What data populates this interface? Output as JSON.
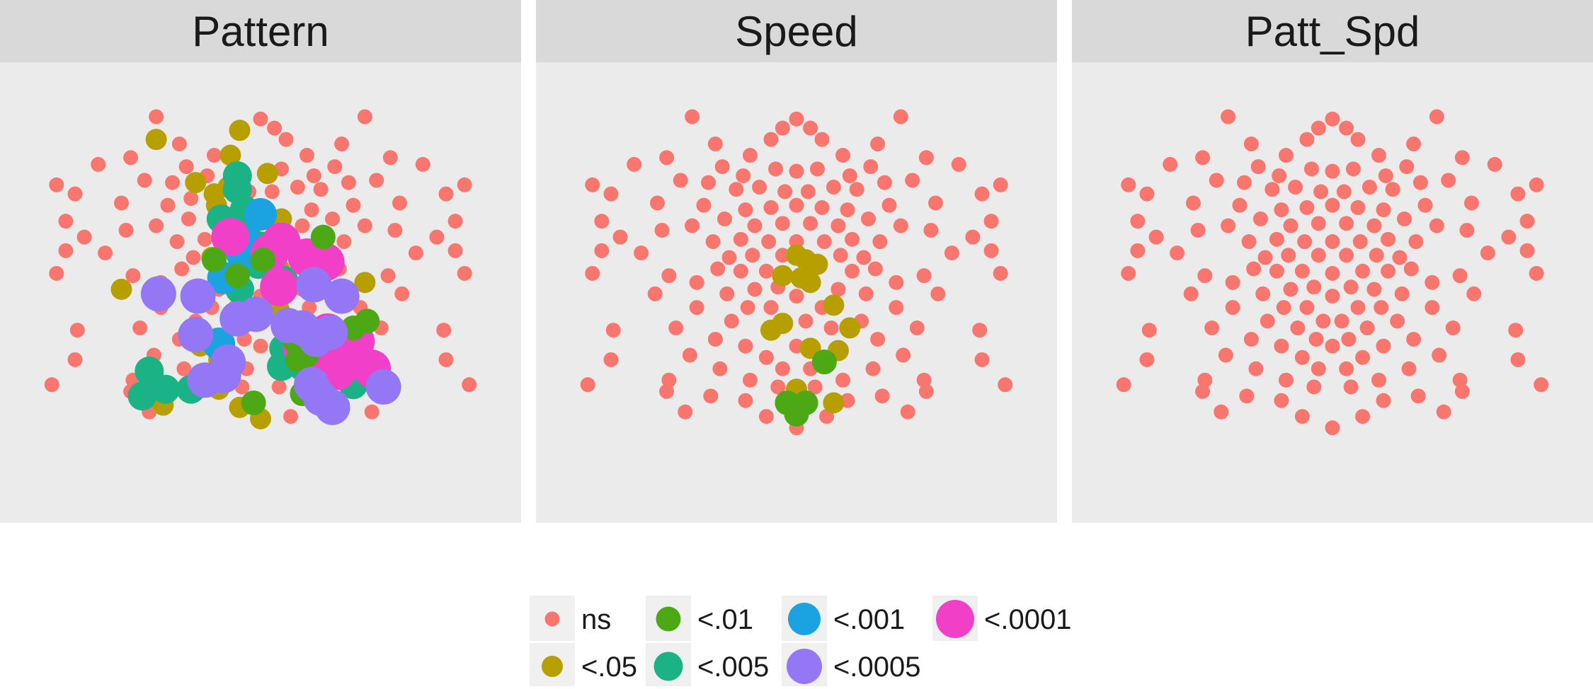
{
  "chart_data": {
    "type": "scatter",
    "facets": [
      {
        "title": "Pattern",
        "points": [
          [
            -0.45,
            0.71,
            "<.05"
          ],
          [
            -0.09,
            0.75,
            "<.05"
          ],
          [
            -0.13,
            0.64,
            "<.05"
          ],
          [
            0.03,
            0.56,
            "<.05"
          ],
          [
            -0.28,
            0.52,
            "<.05"
          ],
          [
            -0.1,
            0.48,
            "<.05"
          ],
          [
            -0.14,
            0.5,
            "<.05"
          ],
          [
            -0.19,
            0.42,
            "<.05"
          ],
          [
            -0.2,
            0.47,
            "<.05"
          ],
          [
            0.09,
            0.36,
            "<.05"
          ],
          [
            -0.21,
            0.19,
            "<.05"
          ],
          [
            0.08,
            0.14,
            "<.05"
          ],
          [
            0.45,
            0.08,
            "<.05"
          ],
          [
            -0.6,
            0.05,
            "<.05"
          ],
          [
            0.08,
            -0.04,
            "<.05"
          ],
          [
            -0.26,
            -0.2,
            "<.05"
          ],
          [
            -0.18,
            -0.26,
            "<.05"
          ],
          [
            -0.18,
            -0.39,
            "<.05"
          ],
          [
            -0.09,
            -0.47,
            "<.05"
          ],
          [
            -0.42,
            -0.46,
            "<.05"
          ],
          [
            0.0,
            -0.52,
            "<.05"
          ],
          [
            0.1,
            -0.19,
            "<.05"
          ],
          [
            -0.1,
            0.55,
            "<.005"
          ],
          [
            -0.1,
            0.49,
            "<.005"
          ],
          [
            -0.07,
            0.4,
            "<.005"
          ],
          [
            -0.17,
            0.36,
            "<.005"
          ],
          [
            -0.04,
            0.38,
            "<.005"
          ],
          [
            -0.15,
            0.33,
            "<.005"
          ],
          [
            -0.11,
            0.25,
            "<.005"
          ],
          [
            -0.03,
            0.25,
            "<.005"
          ],
          [
            -0.07,
            0.2,
            "<.005"
          ],
          [
            -0.01,
            0.16,
            "<.005"
          ],
          [
            0.01,
            0.24,
            "<.005"
          ],
          [
            -0.11,
            0.11,
            "<.005"
          ],
          [
            0.1,
            0.09,
            "<.005"
          ],
          [
            -0.09,
            0.05,
            "<.005"
          ],
          [
            0.1,
            -0.21,
            "<.005"
          ],
          [
            0.19,
            -0.25,
            "<.005"
          ],
          [
            0.18,
            -0.29,
            "<.005"
          ],
          [
            -0.48,
            -0.31,
            "<.005"
          ],
          [
            -0.41,
            -0.39,
            "<.005"
          ],
          [
            -0.51,
            -0.42,
            "<.005"
          ],
          [
            -0.3,
            -0.39,
            "<.005"
          ],
          [
            0.4,
            -0.37,
            "<.005"
          ],
          [
            0.46,
            -0.31,
            "<.005"
          ],
          [
            0.09,
            -0.29,
            "<.005"
          ],
          [
            0.0,
            0.38,
            "<.001"
          ],
          [
            -0.07,
            0.26,
            "<.001"
          ],
          [
            -0.08,
            0.21,
            "<.001"
          ],
          [
            -0.16,
            0.1,
            "<.001"
          ],
          [
            -0.18,
            -0.19,
            "<.001"
          ],
          [
            0.09,
            0.26,
            "<.0001"
          ],
          [
            -0.13,
            0.28,
            "<.0001"
          ],
          [
            0.08,
            0.06,
            "<.0001"
          ],
          [
            0.04,
            0.21,
            "<.0001"
          ],
          [
            0.26,
            -0.31,
            "<.0001"
          ],
          [
            0.33,
            -0.31,
            "<.0001"
          ],
          [
            0.26,
            -0.34,
            "<.0001"
          ],
          [
            0.48,
            -0.3,
            "<.0001"
          ],
          [
            0.41,
            -0.18,
            "<.0001"
          ],
          [
            0.34,
            -0.23,
            "<.0001"
          ],
          [
            0.29,
            -0.14,
            "<.0001"
          ],
          [
            0.18,
            -0.21,
            "<.0001"
          ],
          [
            0.28,
            0.17,
            "<.0001"
          ],
          [
            0.2,
            0.19,
            "<.0001"
          ],
          [
            -0.2,
            0.18,
            "<.01"
          ],
          [
            -0.1,
            0.11,
            "<.01"
          ],
          [
            0.01,
            0.18,
            "<.01"
          ],
          [
            0.16,
            -0.26,
            "<.01"
          ],
          [
            0.2,
            -0.24,
            "<.01"
          ],
          [
            0.15,
            -0.18,
            "<.01"
          ],
          [
            0.4,
            -0.12,
            "<.01"
          ],
          [
            0.46,
            -0.09,
            "<.01"
          ],
          [
            -0.03,
            -0.45,
            "<.01"
          ],
          [
            0.27,
            0.28,
            "<.01"
          ],
          [
            0.18,
            -0.41,
            "<.01"
          ],
          [
            0.26,
            -0.43,
            "<.0005"
          ],
          [
            0.31,
            -0.47,
            "<.0005"
          ],
          [
            0.53,
            -0.38,
            "<.0005"
          ],
          [
            -0.24,
            -0.35,
            "<.0005"
          ],
          [
            0.22,
            -0.37,
            "<.0005"
          ],
          [
            -0.16,
            -0.33,
            "<.0005"
          ],
          [
            0.3,
            -0.14,
            "<.0005"
          ],
          [
            0.24,
            -0.17,
            "<.0005"
          ],
          [
            0.18,
            -0.12,
            "<.0005"
          ],
          [
            0.12,
            -0.11,
            "<.0005"
          ],
          [
            -0.28,
            -0.15,
            "<.0005"
          ],
          [
            0.23,
            0.07,
            "<.0005"
          ],
          [
            0.35,
            0.02,
            "<.0005"
          ],
          [
            -0.27,
            0.02,
            "<.0005"
          ],
          [
            -0.44,
            0.03,
            "<.0005"
          ],
          [
            -0.1,
            -0.08,
            "<.0005"
          ],
          [
            -0.14,
            -0.27,
            "<.0005"
          ],
          [
            -0.02,
            -0.06,
            "<.0005"
          ]
        ]
      },
      {
        "title": "Speed",
        "points": [
          [
            0.0,
            0.2,
            "<.05"
          ],
          [
            0.04,
            0.18,
            "<.05"
          ],
          [
            0.09,
            0.16,
            "<.05"
          ],
          [
            -0.06,
            0.11,
            "<.05"
          ],
          [
            0.02,
            0.1,
            "<.05"
          ],
          [
            0.06,
            0.08,
            "<.05"
          ],
          [
            -0.06,
            -0.1,
            "<.05"
          ],
          [
            0.16,
            -0.02,
            "<.05"
          ],
          [
            0.23,
            -0.12,
            "<.05"
          ],
          [
            -0.11,
            -0.13,
            "<.05"
          ],
          [
            0.06,
            -0.21,
            "<.05"
          ],
          [
            0.18,
            -0.22,
            "<.05"
          ],
          [
            0.0,
            -0.39,
            "<.05"
          ],
          [
            0.16,
            -0.45,
            "<.05"
          ],
          [
            0.12,
            -0.27,
            "<.01"
          ],
          [
            -0.04,
            -0.45,
            "<.01"
          ],
          [
            0.04,
            -0.45,
            "<.01"
          ],
          [
            0.0,
            -0.5,
            "<.01"
          ]
        ]
      },
      {
        "title": "Patt_Spd",
        "points": []
      }
    ],
    "legend": {
      "position": "bottom",
      "entries": [
        "ns",
        "<.05",
        "<.01",
        "<.005",
        "<.001",
        "<.0005",
        "<.0001"
      ]
    }
  },
  "colors": {
    "ns": "#F8766D",
    "<.05": "#B79F00",
    "<.01": "#4DA816",
    "<.005": "#1BB285",
    "<.001": "#1AA3E0",
    "<.0005": "#9477F5",
    "<.0001": "#F23FC8"
  },
  "facet_titles": [
    "Pattern",
    "Speed",
    "Patt_Spd"
  ],
  "legend_labels": {
    "ns": "ns",
    "p05": "<.05",
    "p01": "<.01",
    "p005": "<.005",
    "p001": "<.001",
    "p0005": "<.0005",
    "p0001": "<.0001"
  }
}
